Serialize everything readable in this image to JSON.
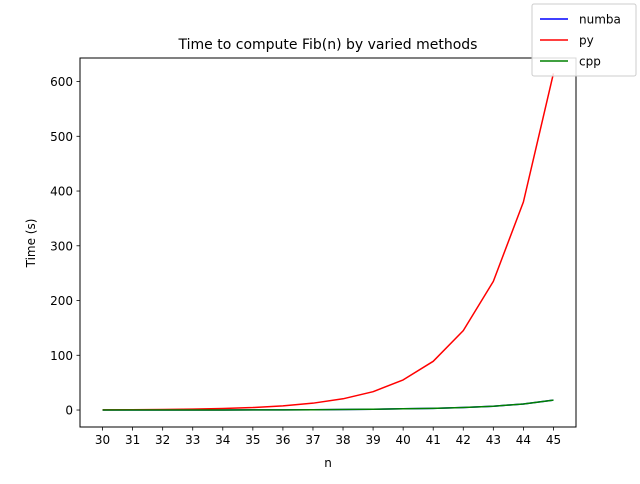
{
  "chart_data": {
    "type": "line",
    "title": "Time to compute Fib(n) by varied methods",
    "xlabel": "n",
    "ylabel": "Time (s)",
    "x": [
      30,
      31,
      32,
      33,
      34,
      35,
      36,
      37,
      38,
      39,
      40,
      41,
      42,
      43,
      44,
      45
    ],
    "xticks": [
      "30",
      "31",
      "32",
      "33",
      "34",
      "35",
      "36",
      "37",
      "38",
      "39",
      "40",
      "41",
      "42",
      "43",
      "44",
      "45"
    ],
    "xlim": [
      29.25,
      45.75
    ],
    "ylim": [
      -31,
      643
    ],
    "yticks": [
      0,
      100,
      200,
      300,
      400,
      500,
      600
    ],
    "grid": false,
    "legend_position": "top-right",
    "series": [
      {
        "name": "numba",
        "color": "#0000ff",
        "values": [
          0.02,
          0.03,
          0.05,
          0.08,
          0.13,
          0.2,
          0.33,
          0.55,
          0.9,
          1.4,
          2.3,
          3.0,
          4.5,
          7.0,
          11.0,
          18.0
        ]
      },
      {
        "name": "py",
        "color": "#ff0000",
        "values": [
          0.3,
          0.5,
          1.0,
          1.6,
          2.8,
          4.5,
          7.5,
          12.5,
          20.5,
          33.5,
          55.0,
          89.0,
          145.0,
          235.0,
          380.0,
          615.0
        ]
      },
      {
        "name": "cpp",
        "color": "#008000",
        "values": [
          0.02,
          0.03,
          0.05,
          0.08,
          0.13,
          0.2,
          0.33,
          0.55,
          0.9,
          1.4,
          2.3,
          3.0,
          4.5,
          7.0,
          11.0,
          18.0
        ]
      }
    ]
  }
}
